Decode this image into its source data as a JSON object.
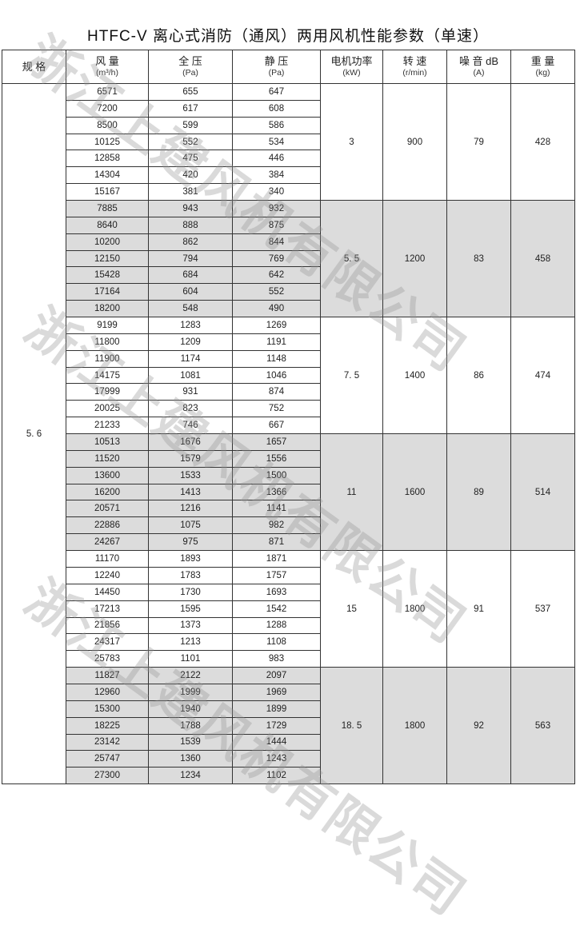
{
  "title": "HTFC-V 离心式消防（通风）两用风机性能参数（单速）",
  "watermark": "浙江上建风机有限公司",
  "shade_color": "#dcdcdc",
  "headers": [
    {
      "label": "规 格",
      "unit": ""
    },
    {
      "label": "风 量",
      "unit": "(m³/h)"
    },
    {
      "label": "全 压",
      "unit": "(Pa)"
    },
    {
      "label": "静 压",
      "unit": "(Pa)"
    },
    {
      "label": "电机功率",
      "unit": "(kW)"
    },
    {
      "label": "转 速",
      "unit": "(r/min)"
    },
    {
      "label": "噪 音 dB",
      "unit": "(A)"
    },
    {
      "label": "重 量",
      "unit": "(kg)"
    }
  ],
  "spec": "5. 6",
  "groups": [
    {
      "power": "3",
      "speed": "900",
      "noise": "79",
      "weight": "428",
      "rows": [
        [
          "6571",
          "655",
          "647"
        ],
        [
          "7200",
          "617",
          "608"
        ],
        [
          "8500",
          "599",
          "586"
        ],
        [
          "10125",
          "552",
          "534"
        ],
        [
          "12858",
          "475",
          "446"
        ],
        [
          "14304",
          "420",
          "384"
        ],
        [
          "15167",
          "381",
          "340"
        ]
      ]
    },
    {
      "power": "5. 5",
      "speed": "1200",
      "noise": "83",
      "weight": "458",
      "rows": [
        [
          "7885",
          "943",
          "932"
        ],
        [
          "8640",
          "888",
          "875"
        ],
        [
          "10200",
          "862",
          "844"
        ],
        [
          "12150",
          "794",
          "769"
        ],
        [
          "15428",
          "684",
          "642"
        ],
        [
          "17164",
          "604",
          "552"
        ],
        [
          "18200",
          "548",
          "490"
        ]
      ]
    },
    {
      "power": "7. 5",
      "speed": "1400",
      "noise": "86",
      "weight": "474",
      "rows": [
        [
          "9199",
          "1283",
          "1269"
        ],
        [
          "11800",
          "1209",
          "1191"
        ],
        [
          "11900",
          "1174",
          "1148"
        ],
        [
          "14175",
          "1081",
          "1046"
        ],
        [
          "17999",
          "931",
          "874"
        ],
        [
          "20025",
          "823",
          "752"
        ],
        [
          "21233",
          "746",
          "667"
        ]
      ]
    },
    {
      "power": "11",
      "speed": "1600",
      "noise": "89",
      "weight": "514",
      "rows": [
        [
          "10513",
          "1676",
          "1657"
        ],
        [
          "11520",
          "1579",
          "1556"
        ],
        [
          "13600",
          "1533",
          "1500"
        ],
        [
          "16200",
          "1413",
          "1366"
        ],
        [
          "20571",
          "1216",
          "1141"
        ],
        [
          "22886",
          "1075",
          "982"
        ],
        [
          "24267",
          "975",
          "871"
        ]
      ]
    },
    {
      "power": "15",
      "speed": "1800",
      "noise": "91",
      "weight": "537",
      "rows": [
        [
          "11170",
          "1893",
          "1871"
        ],
        [
          "12240",
          "1783",
          "1757"
        ],
        [
          "14450",
          "1730",
          "1693"
        ],
        [
          "17213",
          "1595",
          "1542"
        ],
        [
          "21856",
          "1373",
          "1288"
        ],
        [
          "24317",
          "1213",
          "1108"
        ],
        [
          "25783",
          "1101",
          "983"
        ]
      ]
    },
    {
      "power": "18. 5",
      "speed": "1800",
      "noise": "92",
      "weight": "563",
      "rows": [
        [
          "11827",
          "2122",
          "2097"
        ],
        [
          "12960",
          "1999",
          "1969"
        ],
        [
          "15300",
          "1940",
          "1899"
        ],
        [
          "18225",
          "1788",
          "1729"
        ],
        [
          "23142",
          "1539",
          "1444"
        ],
        [
          "25747",
          "1360",
          "1243"
        ],
        [
          "27300",
          "1234",
          "1102"
        ]
      ]
    }
  ]
}
